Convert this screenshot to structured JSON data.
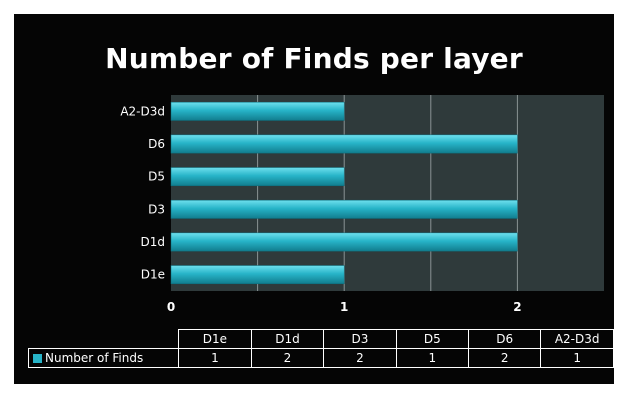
{
  "chart_data": {
    "type": "bar",
    "orientation": "horizontal",
    "title": "Number of Finds per layer",
    "categories": [
      "D1e",
      "D1d",
      "D3",
      "D5",
      "D6",
      "A2-D3d"
    ],
    "series": [
      {
        "name": "Number of Finds",
        "values": [
          1,
          2,
          2,
          1,
          2,
          1
        ]
      }
    ],
    "xlim": [
      0,
      2.5
    ],
    "x_ticks": [
      "0",
      "1",
      "2"
    ],
    "grid": true,
    "legend": "data-table",
    "data_table": true
  },
  "colors": {
    "background": "#050505",
    "plot_area": "#2f3a3b",
    "bar": "#27b4c8",
    "grid": "#8a9394",
    "text": "#ffffff"
  }
}
